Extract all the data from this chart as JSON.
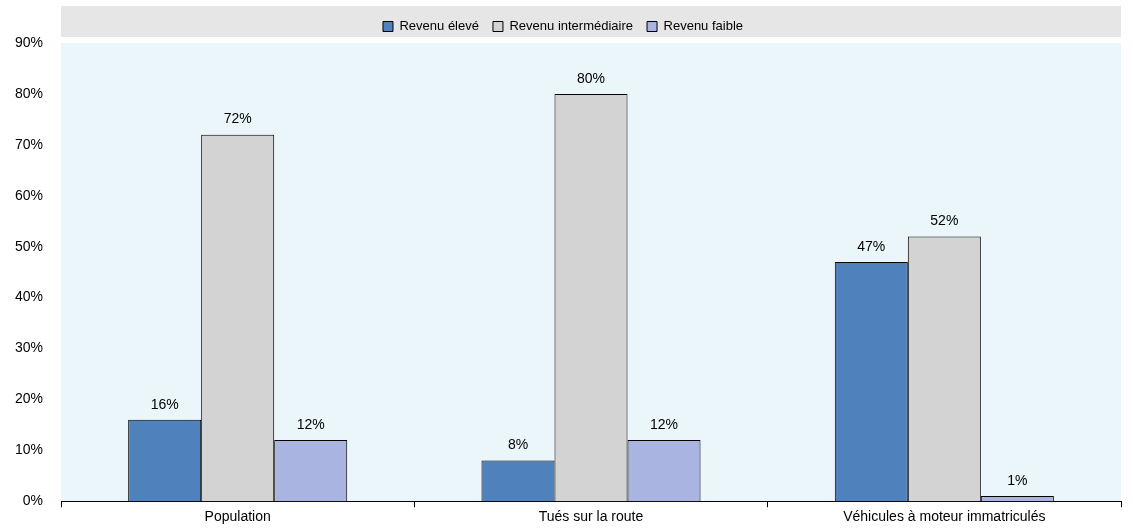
{
  "chart_data": {
    "type": "bar",
    "categories": [
      "Population",
      "Tués sur la route",
      "Véhicules à moteur immatriculés"
    ],
    "series": [
      {
        "name": "Revenu élevé",
        "color": "#4f81bd",
        "values": [
          16,
          8,
          47
        ],
        "value_labels": [
          "16%",
          "8%",
          "47%"
        ]
      },
      {
        "name": "Revenu intermédiaire",
        "color": "#d3d3d3",
        "values": [
          72,
          80,
          52
        ],
        "value_labels": [
          "72%",
          "80%",
          "52%"
        ]
      },
      {
        "name": "Revenu faible",
        "color": "#aab4e0",
        "values": [
          12,
          12,
          1
        ],
        "value_labels": [
          "12%",
          "12%",
          "1%"
        ]
      }
    ],
    "ylim": [
      0,
      90
    ],
    "yticks": [
      {
        "value": 0,
        "label": "0%"
      },
      {
        "value": 10,
        "label": "10%"
      },
      {
        "value": 20,
        "label": "20%"
      },
      {
        "value": 30,
        "label": "30%"
      },
      {
        "value": 40,
        "label": "40%"
      },
      {
        "value": 50,
        "label": "50%"
      },
      {
        "value": 60,
        "label": "60%"
      },
      {
        "value": 70,
        "label": "70%"
      },
      {
        "value": 80,
        "label": "80%"
      },
      {
        "value": 90,
        "label": "90%"
      }
    ],
    "grid": false,
    "legend": "top"
  }
}
